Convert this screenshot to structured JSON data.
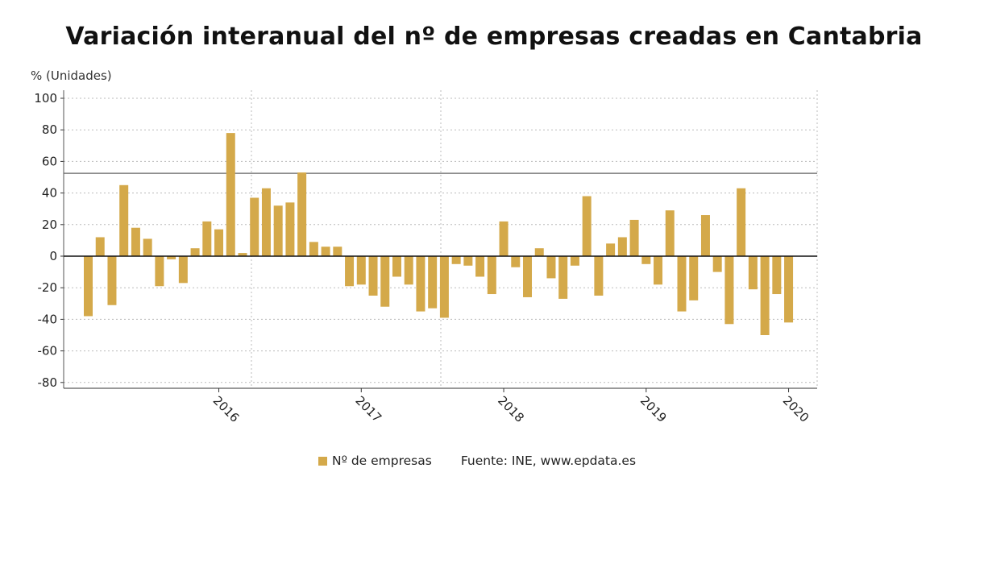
{
  "chart_data": {
    "type": "bar",
    "title": "Variación interanual del nº de empresas creadas en Cantabria",
    "ylabel": "% (Unidades)",
    "xlabel": "",
    "ylim": [
      -80,
      100
    ],
    "yticks": [
      100,
      80,
      60,
      40,
      20,
      0,
      -20,
      -40,
      -60,
      -80
    ],
    "grid": true,
    "reference_line": 52.5,
    "xtick_labels": [
      {
        "label": "2016",
        "bar_number": 12
      },
      {
        "label": "2017",
        "bar_number": 24
      },
      {
        "label": "2018",
        "bar_number": 36
      },
      {
        "label": "2019",
        "bar_number": 48
      },
      {
        "label": "2020",
        "bar_number": 60
      }
    ],
    "series": [
      {
        "name": "Nº de empresas",
        "color": "#d4a94a",
        "values": [
          -38,
          12,
          -31,
          45,
          18,
          11,
          -19,
          -2,
          -17,
          5,
          22,
          17,
          78,
          2,
          37,
          43,
          32,
          34,
          53,
          9,
          6,
          6,
          -19,
          -18,
          -25,
          -32,
          -13,
          -18,
          -35,
          -33,
          -39,
          -5,
          -6,
          -13,
          -24,
          22,
          -7,
          -26,
          5,
          -14,
          -27,
          -6,
          38,
          -25,
          8,
          12,
          23,
          -5,
          -18,
          29,
          -35,
          -28,
          26,
          -10,
          -43,
          43,
          -21,
          -50,
          -24,
          -42
        ]
      }
    ],
    "legend": {
      "position": "bottom",
      "source": "Fuente: INE, www.epdata.es"
    }
  }
}
